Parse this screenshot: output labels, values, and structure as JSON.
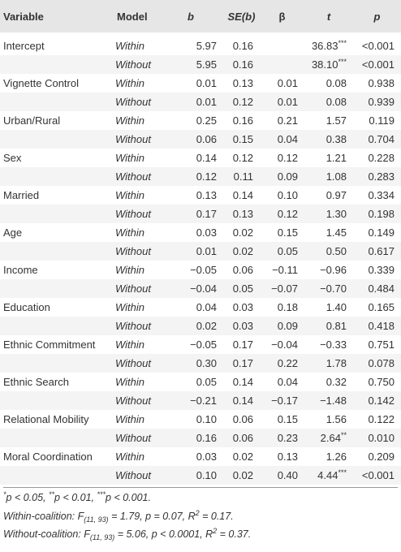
{
  "header": [
    "Variable",
    "Model",
    "b",
    "SE(b)",
    "β",
    "t",
    "p"
  ],
  "groups": [
    {
      "variable": "Intercept",
      "rows": [
        {
          "model": "Within",
          "b": "5.97",
          "se": "0.16",
          "t": "36.83",
          "sig": "***",
          "p": "<0.001"
        },
        {
          "model": "Without",
          "b": "5.95",
          "se": "0.16",
          "t": "38.10",
          "sig": "***",
          "p": "<0.001"
        }
      ]
    },
    {
      "variable": "Vignette Control",
      "rows": [
        {
          "model": "Within",
          "b": "0.01",
          "se": "0.13",
          "beta": "0.01",
          "t": "0.08",
          "p": "0.938"
        },
        {
          "model": "Without",
          "b": "0.01",
          "se": "0.12",
          "beta": "0.01",
          "t": "0.08",
          "p": "0.939"
        }
      ]
    },
    {
      "variable": "Urban/Rural",
      "rows": [
        {
          "model": "Within",
          "b": "0.25",
          "se": "0.16",
          "beta": "0.21",
          "t": "1.57",
          "p": "0.119"
        },
        {
          "model": "Without",
          "b": "0.06",
          "se": "0.15",
          "beta": "0.04",
          "t": "0.38",
          "p": "0.704"
        }
      ]
    },
    {
      "variable": "Sex",
      "rows": [
        {
          "model": "Within",
          "b": "0.14",
          "se": "0.12",
          "beta": "0.12",
          "t": "1.21",
          "p": "0.228"
        },
        {
          "model": "Without",
          "b": "0.12",
          "se": "0.11",
          "beta": "0.09",
          "t": "1.08",
          "p": "0.283"
        }
      ]
    },
    {
      "variable": "Married",
      "rows": [
        {
          "model": "Within",
          "b": "0.13",
          "se": "0.14",
          "beta": "0.10",
          "t": "0.97",
          "p": "0.334"
        },
        {
          "model": "Without",
          "b": "0.17",
          "se": "0.13",
          "beta": "0.12",
          "t": "1.30",
          "p": "0.198"
        }
      ]
    },
    {
      "variable": "Age",
      "rows": [
        {
          "model": "Within",
          "b": "0.03",
          "se": "0.02",
          "beta": "0.15",
          "t": "1.45",
          "p": "0.149"
        },
        {
          "model": "Without",
          "b": "0.01",
          "se": "0.02",
          "beta": "0.05",
          "t": "0.50",
          "p": "0.617"
        }
      ]
    },
    {
      "variable": "Income",
      "rows": [
        {
          "model": "Within",
          "b": "−0.05",
          "se": "0.06",
          "beta": "−0.11",
          "t": "−0.96",
          "p": "0.339"
        },
        {
          "model": "Without",
          "b": "−0.04",
          "se": "0.05",
          "beta": "−0.07",
          "t": "−0.70",
          "p": "0.484"
        }
      ]
    },
    {
      "variable": "Education",
      "rows": [
        {
          "model": "Within",
          "b": "0.04",
          "se": "0.03",
          "beta": "0.18",
          "t": "1.40",
          "p": "0.165"
        },
        {
          "model": "Without",
          "b": "0.02",
          "se": "0.03",
          "beta": "0.09",
          "t": "0.81",
          "p": "0.418"
        }
      ]
    },
    {
      "variable": "Ethnic Commitment",
      "rows": [
        {
          "model": "Within",
          "b": "−0.05",
          "se": "0.17",
          "beta": "−0.04",
          "t": "−0.33",
          "p": "0.751"
        },
        {
          "model": "Without",
          "b": "0.30",
          "se": "0.17",
          "beta": "0.22",
          "t": "1.78",
          "p": "0.078"
        }
      ]
    },
    {
      "variable": "Ethnic Search",
      "rows": [
        {
          "model": "Within",
          "b": "0.05",
          "se": "0.14",
          "beta": "0.04",
          "t": "0.32",
          "p": "0.750"
        },
        {
          "model": "Without",
          "b": "−0.21",
          "se": "0.14",
          "beta": "−0.17",
          "t": "−1.48",
          "p": "0.142"
        }
      ]
    },
    {
      "variable": "Relational Mobility",
      "rows": [
        {
          "model": "Within",
          "b": "0.10",
          "se": "0.06",
          "beta": "0.15",
          "t": "1.56",
          "p": "0.122"
        },
        {
          "model": "Without",
          "b": "0.16",
          "se": "0.06",
          "beta": "0.23",
          "t": "2.64",
          "sig": "**",
          "p": "0.010"
        }
      ]
    },
    {
      "variable": "Moral Coordination",
      "rows": [
        {
          "model": "Within",
          "b": "0.03",
          "se": "0.02",
          "beta": "0.13",
          "t": "1.26",
          "p": "0.209"
        },
        {
          "model": "Without",
          "b": "0.10",
          "se": "0.02",
          "beta": "0.40",
          "t": "4.44",
          "sig": "***",
          "p": "<0.001"
        }
      ]
    }
  ],
  "notes": [
    [
      "*",
      "p < 0.05, ",
      "**",
      "p < 0.01, ",
      "***",
      "p < 0.001."
    ],
    [
      "Within-coalition: F",
      "(11, 93)",
      " = 1.79, p = 0.07, R",
      "2",
      " = 0.17."
    ],
    [
      "Without-coalition: F",
      "(11, 93)",
      " = 5.06, p < 0.0001, R",
      "2",
      " = 0.37."
    ]
  ]
}
